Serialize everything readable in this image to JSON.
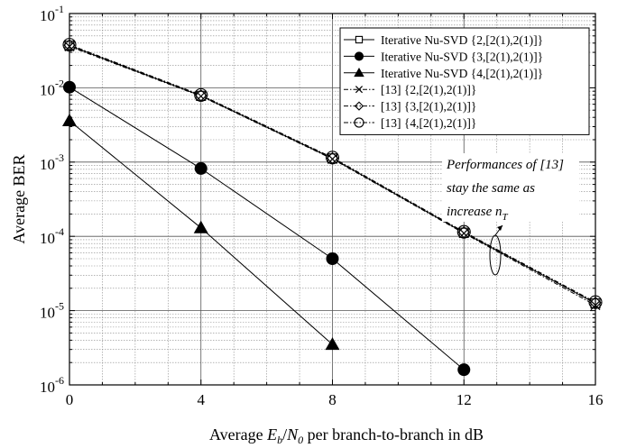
{
  "chart_data": {
    "type": "line",
    "title": "",
    "xlabel": "Average E_b/N_0 per branch-to-branch in dB",
    "xlabel_parts": {
      "prefix": "Average ",
      "E": "E",
      "b": "b",
      "slash": "/",
      "N": "N",
      "zero": "0",
      "suffix": " per branch-to-branch in dB"
    },
    "ylabel": "Average BER",
    "xlim": [
      0,
      16
    ],
    "ylim": [
      1e-06,
      0.1
    ],
    "yscale": "log",
    "grid": true,
    "legend_position": "top-right",
    "xticks": [
      "0",
      "4",
      "8",
      "12",
      "16"
    ],
    "yticks": [
      {
        "base": "10",
        "exp": "-6"
      },
      {
        "base": "10",
        "exp": "-5"
      },
      {
        "base": "10",
        "exp": "-4"
      },
      {
        "base": "10",
        "exp": "-3"
      },
      {
        "base": "10",
        "exp": "-2"
      },
      {
        "base": "10",
        "exp": "-1"
      }
    ],
    "series": [
      {
        "name": "Iterative Nu-SVD {2,[2(1),2(1)]}",
        "marker": "square",
        "dash": "solid",
        "x": [
          0,
          4,
          8,
          12,
          16
        ],
        "y": [
          0.037,
          0.0078,
          0.00112,
          0.000112,
          1.25e-05
        ]
      },
      {
        "name": "Iterative Nu-SVD {3,[2(1),2(1)]}",
        "marker": "circle-filled",
        "dash": "solid",
        "x": [
          0,
          4,
          8,
          12
        ],
        "y": [
          0.0102,
          0.00082,
          5e-05,
          1.6e-06
        ]
      },
      {
        "name": "Iterative Nu-SVD {4,[2(1),2(1)]}",
        "marker": "triangle-filled",
        "dash": "solid",
        "x": [
          0,
          4,
          8
        ],
        "y": [
          0.0036,
          0.00013,
          3.5e-06
        ]
      },
      {
        "name": "[13] {2,[2(1),2(1)]}",
        "marker": "x",
        "dash": "dashdot",
        "x": [
          0,
          4,
          8,
          12,
          16
        ],
        "y": [
          0.036,
          0.0077,
          0.0011,
          0.00011,
          1.18e-05
        ]
      },
      {
        "name": "[13] {3,[2(1),2(1)]}",
        "marker": "diamond",
        "dash": "dashdot",
        "x": [
          0,
          4,
          8,
          12,
          16
        ],
        "y": [
          0.0375,
          0.0079,
          0.00113,
          0.000114,
          1.28e-05
        ]
      },
      {
        "name": "[13] {4,[2(1),2(1)]}",
        "marker": "circle-open",
        "dash": "dashdot",
        "x": [
          0,
          4,
          8,
          12,
          16
        ],
        "y": [
          0.038,
          0.008,
          0.00115,
          0.000115,
          1.3e-05
        ]
      }
    ],
    "annotation": {
      "line1": "Performances of [13]",
      "line2": "stay the same as",
      "line3_prefix": "increase n",
      "line3_sub": "T"
    }
  }
}
